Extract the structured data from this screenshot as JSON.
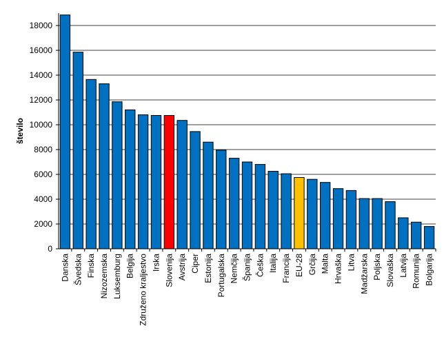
{
  "chart_data": {
    "type": "bar",
    "ylabel": "število",
    "xlabel": "",
    "ylim": [
      0,
      19000
    ],
    "yticks": [
      0,
      2000,
      4000,
      6000,
      8000,
      10000,
      12000,
      14000,
      16000,
      18000
    ],
    "grid": true,
    "legend": "none",
    "default_color": "#0070C0",
    "categories": [
      "Danska",
      "Švedska",
      "Finska",
      "Nizozemska",
      "Luksemburg",
      "Belgija",
      "Združeno kraljestvo",
      "Irska",
      "Slovenija",
      "Avstrija",
      "Ciper",
      "Estonija",
      "Portugalska",
      "Nemčija",
      "Španija",
      "Češka",
      "Italija",
      "Francija",
      "EU-28",
      "Grčija",
      "Malta",
      "Hrvaška",
      "Litva",
      "Madžarska",
      "Poljska",
      "Slovaška",
      "Latvija",
      "Romunija",
      "Bolgarija"
    ],
    "values": [
      18850,
      15850,
      13650,
      13300,
      11850,
      11200,
      10800,
      10750,
      10750,
      10350,
      9450,
      8600,
      7950,
      7300,
      7000,
      6800,
      6250,
      6050,
      5750,
      5600,
      5350,
      4850,
      4700,
      4050,
      4050,
      3800,
      2500,
      2150,
      1800
    ],
    "highlights": {
      "Slovenija": "#FF0000",
      "EU-28": "#FFC000"
    }
  }
}
